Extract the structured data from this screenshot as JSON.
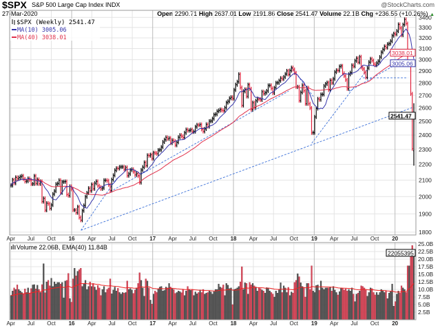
{
  "header": {
    "symbol": "$SPX",
    "name": "S&P 500 Large Cap Index",
    "exchange": "INDX",
    "date": "27-Mar-2020",
    "brand": "@StockCharts.com",
    "open_label": "Open",
    "open": "2290.71",
    "high_label": "High",
    "high": "2637.01",
    "low_label": "Low",
    "low": "2191.86",
    "close_label": "Close",
    "close": "2541.47",
    "volume_label": "Volume",
    "volume": "22.1B",
    "chg_label": "Chg",
    "chg": "+236.55 (+10.26%)",
    "chg_arrow": "▲"
  },
  "chart_data": [
    {
      "type": "ohlc",
      "panel": "price",
      "scale": "log",
      "legend": [
        {
          "label": "$SPX (Weekly) 2541.47",
          "color": "#000000"
        },
        {
          "label": "MA(10) 3005.06",
          "color": "#3333aa"
        },
        {
          "label": "MA(40) 3038.01",
          "color": "#e0304a"
        }
      ],
      "ylim": [
        1800,
        3400
      ],
      "y_ticks": [
        1800,
        1900,
        2000,
        2100,
        2200,
        2300,
        2400,
        2500,
        2600,
        2700,
        2800,
        2900,
        3000,
        3100,
        3200,
        3300,
        3400
      ],
      "x_ticks": [
        {
          "label": "Apr",
          "date": "2015-04-01"
        },
        {
          "label": "Jul",
          "date": "2015-07-01"
        },
        {
          "label": "Oct",
          "date": "2015-10-01"
        },
        {
          "label": "16",
          "date": "2016-01-01",
          "bold": true
        },
        {
          "label": "Apr",
          "date": "2016-04-01"
        },
        {
          "label": "Jul",
          "date": "2016-07-01"
        },
        {
          "label": "Oct",
          "date": "2016-10-01"
        },
        {
          "label": "17",
          "date": "2017-01-01",
          "bold": true
        },
        {
          "label": "Apr",
          "date": "2017-04-01"
        },
        {
          "label": "Jul",
          "date": "2017-07-01"
        },
        {
          "label": "Oct",
          "date": "2017-10-01"
        },
        {
          "label": "18",
          "date": "2018-01-01",
          "bold": true
        },
        {
          "label": "Apr",
          "date": "2018-04-01"
        },
        {
          "label": "Jul",
          "date": "2018-07-01"
        },
        {
          "label": "Oct",
          "date": "2018-10-01"
        },
        {
          "label": "19",
          "date": "2019-01-01",
          "bold": true
        },
        {
          "label": "Apr",
          "date": "2019-04-01"
        },
        {
          "label": "Jul",
          "date": "2019-07-01"
        },
        {
          "label": "Oct",
          "date": "2019-10-01"
        },
        {
          "label": "20",
          "date": "2020-01-01",
          "bold": true
        }
      ],
      "last_bar": {
        "open": 2290.71,
        "high": 2637.01,
        "low": 2191.86,
        "close": 2541.47
      },
      "weekly_close": [
        2067,
        2102,
        2081,
        2117,
        2108,
        2116,
        2122,
        2126,
        2107,
        2092,
        2094,
        2110,
        2101,
        2076,
        2077,
        2126,
        2079,
        2104,
        2077,
        2092,
        1971,
        1989,
        1921,
        1961,
        1958,
        1931,
        1951,
        2015,
        2033,
        2075,
        2079,
        2099,
        2023,
        2089,
        2090,
        2091,
        2012,
        2006,
        2061,
        2044,
        1922,
        1922,
        1907,
        1940,
        1880,
        1865,
        1918,
        1948,
        1999,
        2022,
        2050,
        2035,
        2073,
        2047,
        2081,
        2092,
        2065,
        2057,
        2047,
        2052,
        2099,
        2099,
        2096,
        2071,
        2037,
        2103,
        2130,
        2162,
        2175,
        2174,
        2183,
        2184,
        2184,
        2169,
        2180,
        2128,
        2139,
        2164,
        2168,
        2153,
        2133,
        2141,
        2126,
        2085,
        2164,
        2182,
        2213,
        2192,
        2260,
        2258,
        2264,
        2239,
        2277,
        2275,
        2271,
        2295,
        2297,
        2316,
        2351,
        2367,
        2383,
        2373,
        2378,
        2344,
        2363,
        2356,
        2329,
        2349,
        2384,
        2399,
        2391,
        2382,
        2416,
        2439,
        2432,
        2433,
        2438,
        2423,
        2425,
        2459,
        2473,
        2472,
        2476,
        2441,
        2426,
        2444,
        2477,
        2461,
        2500,
        2502,
        2519,
        2549,
        2553,
        2575,
        2581,
        2588,
        2582,
        2579,
        2602,
        2642,
        2652,
        2676,
        2684,
        2674,
        2743,
        2786,
        2810,
        2873,
        2762,
        2620,
        2732,
        2747,
        2691,
        2786,
        2752,
        2588,
        2641,
        2604,
        2656,
        2670,
        2669,
        2663,
        2728,
        2713,
        2721,
        2735,
        2779,
        2780,
        2755,
        2718,
        2760,
        2801,
        2802,
        2819,
        2840,
        2833,
        2850,
        2875,
        2902,
        2872,
        2905,
        2930,
        2914,
        2885,
        2767,
        2768,
        2658,
        2723,
        2781,
        2736,
        2633,
        2760,
        2633,
        2600,
        2416,
        2417,
        2532,
        2596,
        2671,
        2665,
        2706,
        2707,
        2775,
        2792,
        2803,
        2743,
        2822,
        2800,
        2834,
        2892,
        2907,
        2905,
        2940,
        2945,
        2881,
        2859,
        2826,
        2752,
        2873,
        2886,
        2950,
        2942,
        2990,
        3013,
        2977,
        3025,
        2932,
        2919,
        2889,
        2847,
        2926,
        2978,
        3007,
        2992,
        2961,
        2952,
        2970,
        2986,
        3023,
        3067,
        3093,
        3120,
        3110,
        3141,
        3146,
        3169,
        3221,
        3240,
        3235,
        3265,
        3330,
        3295,
        3226,
        3328,
        3380,
        3338,
        2954,
        2972,
        2711,
        2305,
        2541.47
      ],
      "ma_periods": [
        10,
        40
      ],
      "value_boxes": [
        "3038.01",
        "3005.06",
        "2541.47"
      ],
      "trendlines": [
        {
          "from": [
            "2016-02-12",
            1810
          ],
          "to": [
            "2020-03-20",
            2604
          ]
        },
        {
          "from": [
            "2016-02-12",
            1810
          ],
          "to": [
            "2016-07-22",
            2110
          ]
        },
        {
          "from": [
            "2016-06-24",
            2030
          ],
          "to": [
            "2018-09-07",
            2733
          ]
        },
        {
          "from": [
            "2018-09-21",
            2931
          ],
          "to": [
            "2018-12-28",
            2690
          ]
        },
        {
          "from": [
            "2018-12-21",
            2343
          ],
          "to": [
            "2019-08-30",
            2917
          ]
        },
        {
          "from": [
            "2019-06-07",
            2733
          ],
          "to": [
            "2020-02-21",
            3010
          ]
        },
        {
          "from": [
            "2019-08-09",
            2843
          ],
          "to": [
            "2020-02-28",
            2843
          ]
        }
      ]
    },
    {
      "type": "bar",
      "panel": "volume",
      "legend": "Volume 22.06B, EMA(40) 11.84B",
      "ylim": [
        0,
        25
      ],
      "y_ticks": [
        "2.5B",
        "5.0B",
        "7.5B",
        "10.0B",
        "12.5B",
        "15.0B",
        "17.5B",
        "20.0B",
        "22.5B",
        "25.0B"
      ],
      "value_box": "22055395",
      "ema_period": 40,
      "colors": {
        "up": "#555555",
        "down": "#d9485a",
        "ema": "#ee2222"
      },
      "volume_b": [
        8.0,
        9.5,
        10.5,
        10.0,
        11.5,
        10.0,
        9.5,
        9.0,
        8.5,
        10.2,
        9.0,
        10.5,
        8.8,
        10.3,
        11.5,
        11.6,
        10.2,
        11.4,
        10.0,
        9.0,
        11.6,
        18.5,
        8.9,
        12.5,
        13.0,
        11.2,
        13.7,
        11.0,
        12.5,
        11.8,
        12.3,
        12.3,
        11.8,
        12.3,
        7.2,
        12.8,
        13.0,
        15.3,
        7.0,
        5.8,
        13.5,
        17.0,
        14.5,
        16.0,
        16.5,
        17.0,
        11.0,
        12.0,
        13.0,
        10.0,
        11.0,
        12.5,
        11.0,
        12.0,
        10.8,
        9.8,
        11.3,
        10.5,
        8.0,
        10.0,
        11.0,
        9.0,
        10.0,
        10.5,
        13.5,
        8.6,
        9.8,
        10.8,
        9.5,
        10.4,
        9.0,
        8.5,
        9.0,
        8.8,
        9.0,
        12.8,
        10.0,
        10.3,
        9.8,
        8.7,
        9.8,
        10.5,
        12.0,
        15.5,
        13.0,
        10.5,
        7.8,
        13.5,
        12.8,
        10.5,
        6.5,
        5.2,
        8.5,
        9.5,
        9.0,
        10.2,
        10.8,
        11.0,
        9.5,
        9.7,
        10.8,
        10.5,
        12.0,
        10.8,
        10.3,
        10.0,
        8.7,
        9.0,
        9.5,
        9.3,
        8.9,
        10.0,
        8.0,
        9.5,
        11.0,
        10.0,
        9.7,
        10.0,
        8.0,
        9.2,
        8.6,
        9.0,
        9.8,
        9.0,
        10.0,
        8.5,
        8.8,
        9.0,
        9.5,
        9.2,
        8.5,
        9.3,
        10.0,
        10.0,
        11.8,
        10.8,
        10.5,
        11.5,
        8.0,
        12.0,
        11.4,
        10.3,
        10.5,
        5.0,
        10.0,
        10.2,
        10.5,
        11.0,
        12.5,
        17.5,
        10.0,
        12.2,
        12.0,
        8.5,
        12.3,
        11.5,
        12.0,
        11.2,
        10.8,
        9.5,
        10.5,
        10.3,
        9.8,
        9.5,
        8.8,
        10.6,
        10.5,
        9.5,
        9.0,
        8.5,
        7.5,
        9.5,
        8.8,
        10.0,
        12.2,
        9.0,
        11.2,
        10.5,
        9.0,
        10.7,
        8.0,
        9.2,
        8.8,
        12.3,
        13.0,
        15.2,
        14.2,
        12.2,
        11.0,
        10.5,
        7.5,
        12.0,
        12.0,
        10.0,
        17.8,
        9.5,
        9.0,
        11.3,
        11.5,
        9.7,
        12.8,
        10.5,
        10.0,
        10.5,
        10.5,
        10.5,
        10.8,
        9.5,
        11.0,
        9.8,
        9.0,
        8.2,
        9.3,
        10.5,
        10.3,
        9.8,
        10.2,
        9.5,
        10.0,
        9.5,
        10.5,
        8.5,
        6.0,
        8.5,
        8.8,
        9.5,
        11.2,
        11.0,
        10.5,
        9.8,
        7.8,
        9.0,
        10.5,
        10.3,
        9.0,
        8.2,
        9.0,
        8.2,
        9.0,
        10.0,
        9.5,
        9.0,
        9.5,
        7.0,
        8.8,
        9.3,
        11.8,
        4.5,
        6.0,
        8.5,
        9.5,
        8.8,
        11.2,
        10.5,
        10.0,
        9.0,
        17.8,
        17.8,
        23.0,
        24.5,
        22.06
      ]
    }
  ],
  "colors": {
    "up": "#000000",
    "down": "#e0203a",
    "ma10": "#3333aa",
    "ma40": "#e0304a",
    "trendline": "#3a6fd8",
    "grid": "#e4e4e4"
  }
}
